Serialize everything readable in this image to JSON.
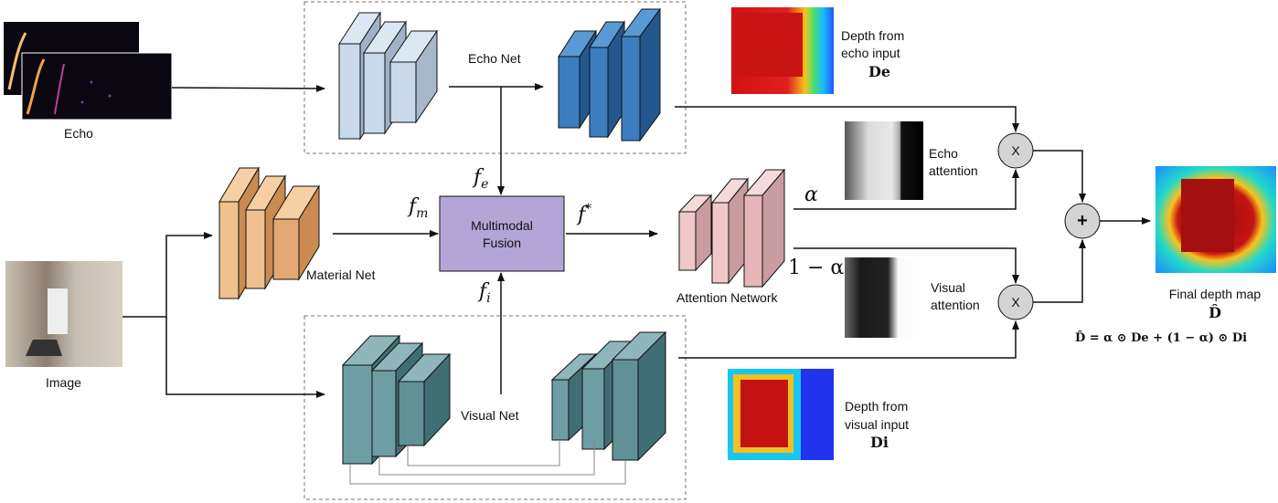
{
  "labels": {
    "echo": "Echo",
    "image": "Image",
    "echo_net": "Echo Net",
    "material_net": "Material Net",
    "visual_net": "Visual Net",
    "fusion_line1": "Multimodal",
    "fusion_line2": "Fusion",
    "attention_network": "Attention Network",
    "depth_echo_line1": "Depth from",
    "depth_echo_line2": "echo input",
    "depth_echo_symbol": "De",
    "depth_visual_line1": "Depth from",
    "depth_visual_line2": "visual input",
    "depth_visual_symbol": "Di",
    "echo_attention_line1": "Echo",
    "echo_attention_line2": "attention",
    "visual_attention_line1": "Visual",
    "visual_attention_line2": "attention",
    "final_depth": "Final depth map",
    "final_symbol": "D̂",
    "equation": "D̂ = α ⊙ De + (1 − α) ⊙ Di",
    "f_e": "fe",
    "f_m": "fm",
    "f_i": "fi",
    "f_star": "f*",
    "alpha": "α",
    "one_minus_alpha": "1 − α",
    "multiply1": "X",
    "multiply2": "X",
    "plus": "+"
  },
  "colors": {
    "echo_block": "#a9c4e0",
    "echo_net_block": "#2f6fb0",
    "material_block": "#e3a873",
    "visual_block": "#5f9197",
    "attention_block": "#e7b6b8",
    "fusion_box": "#b3a6d6",
    "op_circle": "#d4d4d4"
  }
}
